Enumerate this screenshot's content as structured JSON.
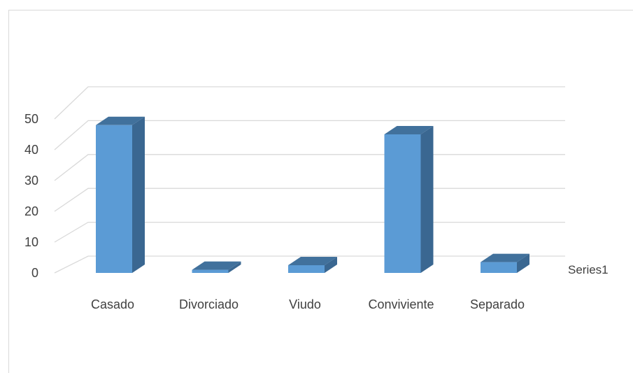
{
  "chart_data": {
    "type": "bar",
    "style": "3d-column",
    "categories": [
      "Casado",
      "Divorciado",
      "Viudo",
      "Conviviente",
      "Separado"
    ],
    "series": [
      {
        "name": "Series1",
        "values": [
          48,
          1,
          2.5,
          45,
          3.5
        ],
        "color": "#5b9bd5",
        "side_color": "#3a6791",
        "top_color": "#41719c"
      }
    ],
    "yticks": [
      0,
      10,
      20,
      30,
      40,
      50
    ],
    "ylim": [
      0,
      50
    ],
    "title": "",
    "xlabel": "",
    "ylabel": "",
    "grid": true,
    "legend": "right"
  }
}
